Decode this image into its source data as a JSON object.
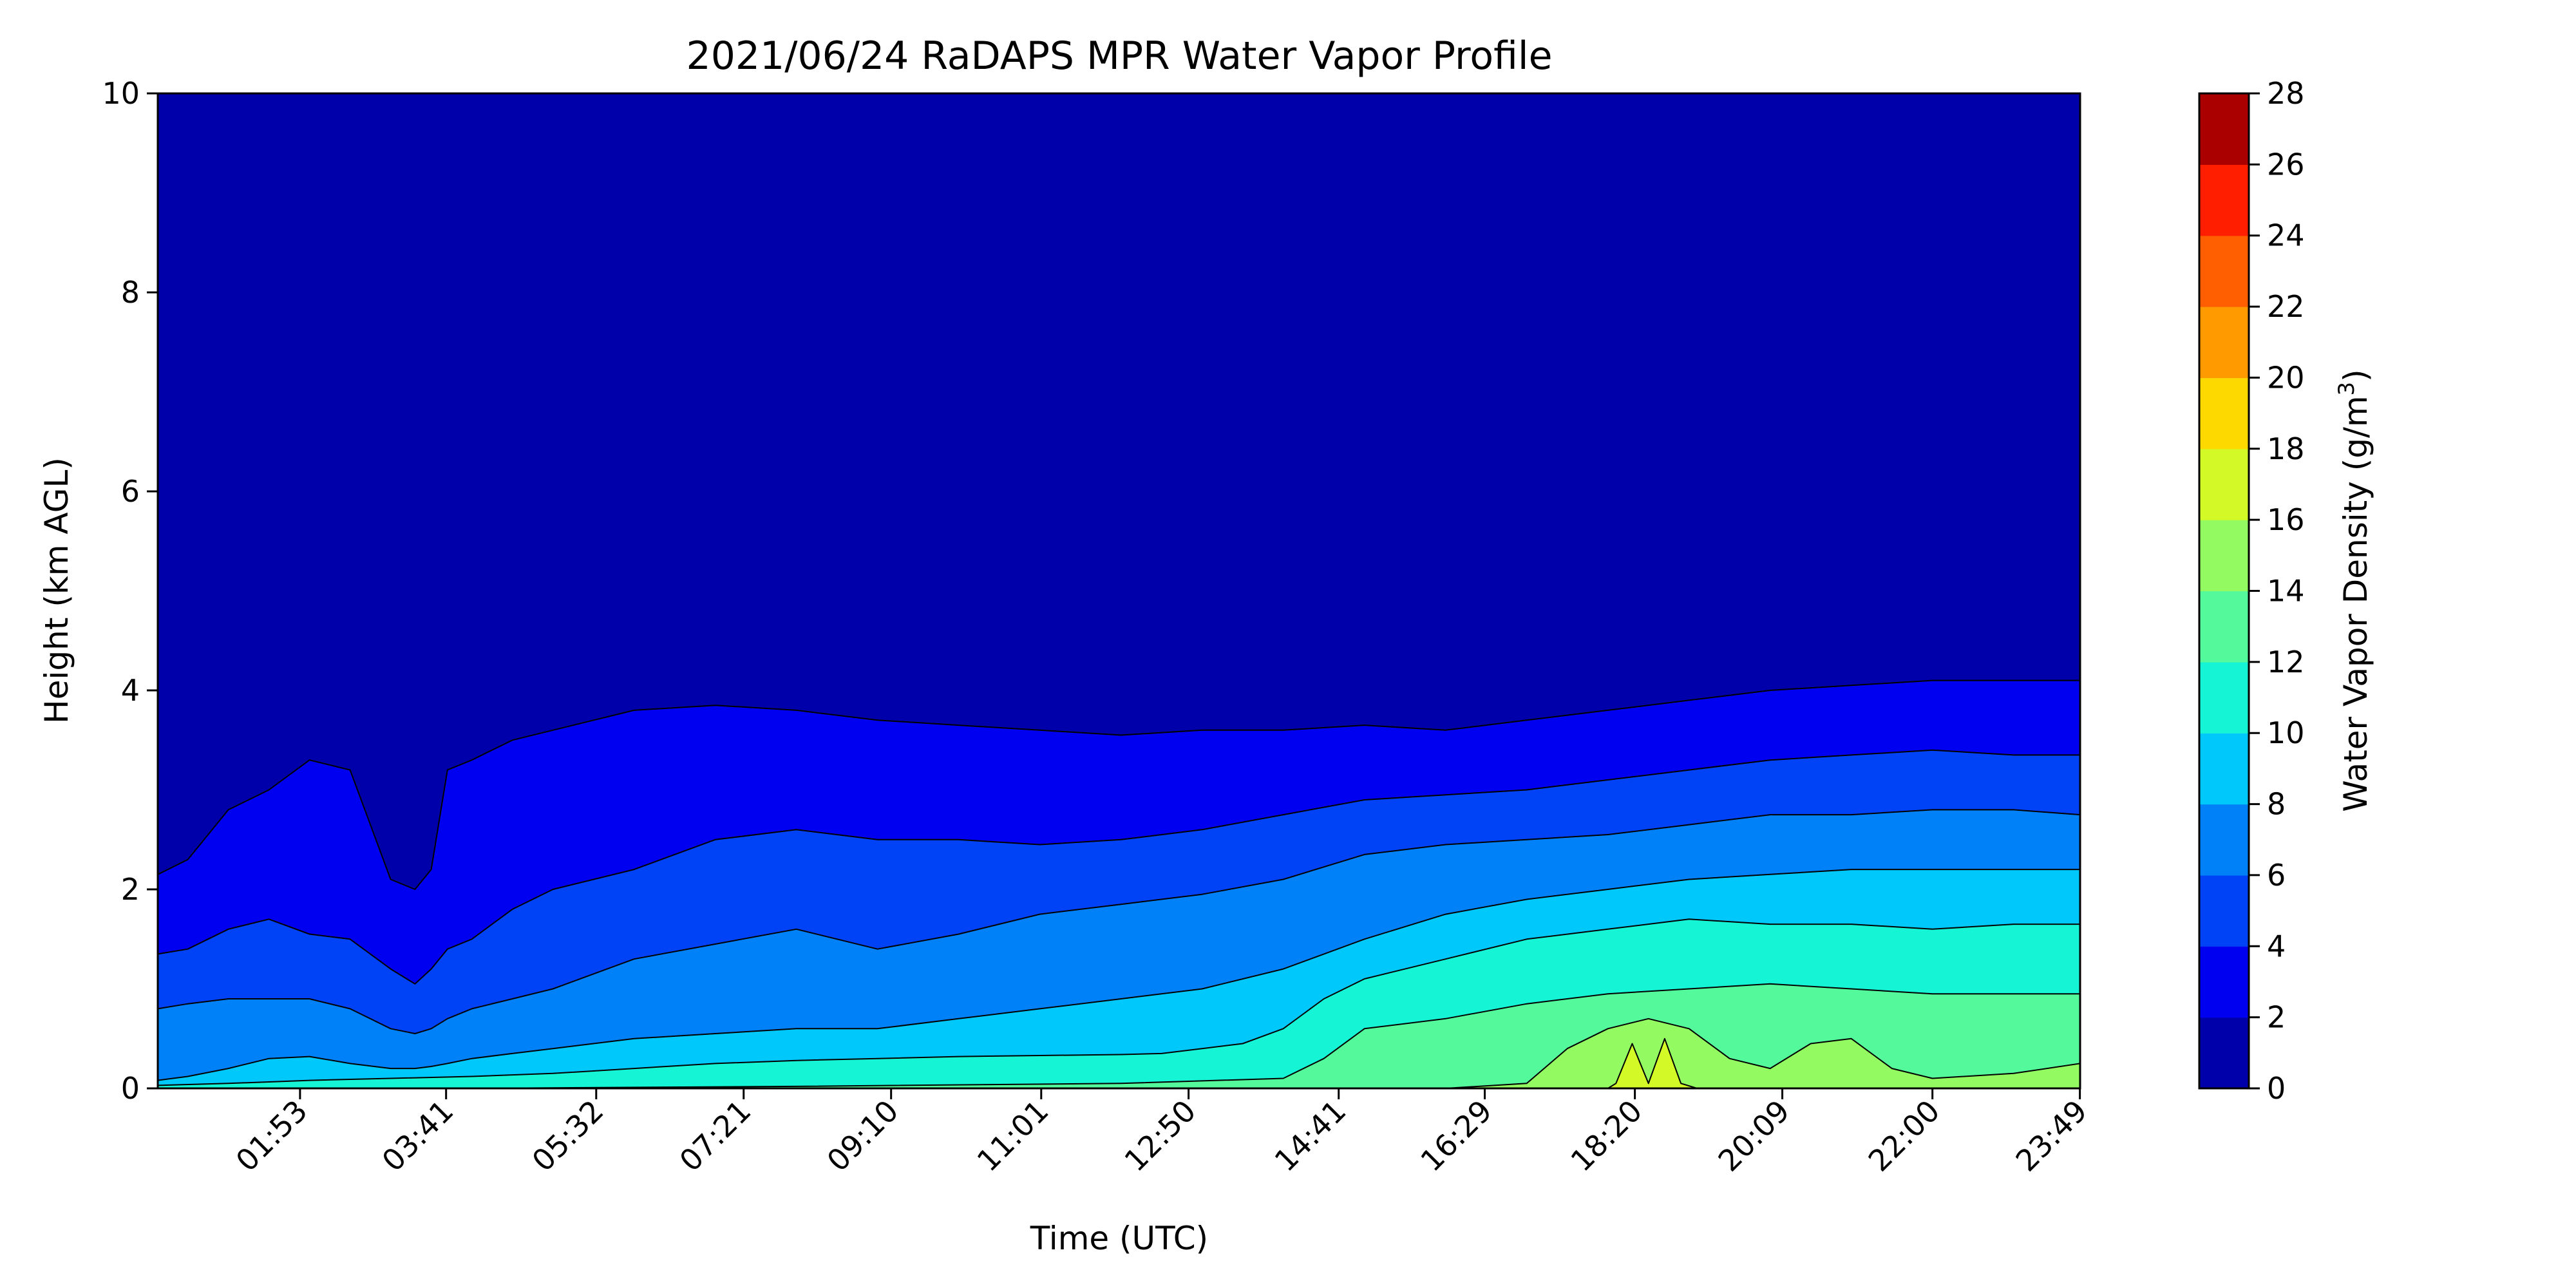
{
  "chart_data": {
    "type": "contour",
    "title": "2021/06/24 RaDAPS MPR Water Vapor Profile",
    "xlabel": "Time (UTC)",
    "ylabel": "Height (km AGL)",
    "colorbar_label": "Water Vapor Density (g/m",
    "colorbar_label_sup": "3",
    "colorbar_label_close": ")",
    "x_ticks": [
      "01:53",
      "03:41",
      "05:32",
      "07:21",
      "09:10",
      "11:01",
      "12:50",
      "14:41",
      "16:29",
      "18:20",
      "20:09",
      "22:00",
      "23:49"
    ],
    "x_tick_hours": [
      1.883,
      3.683,
      5.533,
      7.35,
      9.167,
      11.017,
      12.833,
      14.683,
      16.483,
      18.333,
      20.15,
      22.0,
      23.817
    ],
    "xlim_hours": [
      0.13,
      23.82
    ],
    "y_ticks": [
      "0",
      "2",
      "4",
      "6",
      "8",
      "10"
    ],
    "y_tick_values": [
      0,
      2,
      4,
      6,
      8,
      10
    ],
    "ylim": [
      0,
      10
    ],
    "levels": [
      0,
      2,
      4,
      6,
      8,
      10,
      12,
      14,
      16,
      18,
      20,
      22,
      24,
      26,
      28
    ],
    "level_labels": [
      "0",
      "2",
      "4",
      "6",
      "8",
      "10",
      "12",
      "14",
      "16",
      "18",
      "20",
      "22",
      "24",
      "26",
      "28"
    ],
    "colors": [
      "#0000aa",
      "#0000f0",
      "#0042f5",
      "#0081f8",
      "#00c8fa",
      "#16f4d6",
      "#54f99b",
      "#93fa61",
      "#d3fa26",
      "#fdd900",
      "#ff9b00",
      "#ff5f00",
      "#ff1f00",
      "#aa0000"
    ],
    "line_color": "#000000",
    "boundaries": [
      {
        "level": 2,
        "x": [
          0.13,
          0.5,
          1,
          1.5,
          2,
          2.5,
          3,
          3.3,
          3.5,
          3.7,
          4,
          4.5,
          5,
          6,
          7,
          8,
          9,
          10,
          11,
          12,
          13,
          14,
          15,
          16,
          17,
          18,
          19,
          20,
          21,
          22,
          23,
          23.82
        ],
        "y": [
          2.15,
          2.3,
          2.8,
          3.0,
          3.3,
          3.2,
          2.1,
          2.0,
          2.2,
          3.2,
          3.3,
          3.5,
          3.6,
          3.8,
          3.85,
          3.8,
          3.7,
          3.65,
          3.6,
          3.55,
          3.6,
          3.6,
          3.65,
          3.6,
          3.7,
          3.8,
          3.9,
          4.0,
          4.05,
          4.1,
          4.1,
          4.1
        ]
      },
      {
        "level": 4,
        "x": [
          0.13,
          0.5,
          1,
          1.5,
          2,
          2.5,
          3,
          3.3,
          3.5,
          3.7,
          4,
          4.5,
          5,
          6,
          7,
          8,
          9,
          10,
          11,
          12,
          13,
          14,
          15,
          16,
          17,
          18,
          19,
          20,
          21,
          22,
          23,
          23.82
        ],
        "y": [
          1.35,
          1.4,
          1.6,
          1.7,
          1.55,
          1.5,
          1.2,
          1.05,
          1.2,
          1.4,
          1.5,
          1.8,
          2.0,
          2.2,
          2.5,
          2.6,
          2.5,
          2.5,
          2.45,
          2.5,
          2.6,
          2.75,
          2.9,
          2.95,
          3.0,
          3.1,
          3.2,
          3.3,
          3.35,
          3.4,
          3.35,
          3.35
        ]
      },
      {
        "level": 6,
        "x": [
          0.13,
          0.5,
          1,
          1.5,
          2,
          2.5,
          3,
          3.3,
          3.5,
          3.7,
          4,
          4.5,
          5,
          6,
          7,
          8,
          9,
          10,
          11,
          12,
          13,
          14,
          15,
          16,
          17,
          18,
          19,
          20,
          21,
          22,
          23,
          23.82
        ],
        "y": [
          0.8,
          0.85,
          0.9,
          0.9,
          0.9,
          0.8,
          0.6,
          0.55,
          0.6,
          0.7,
          0.8,
          0.9,
          1.0,
          1.3,
          1.45,
          1.6,
          1.4,
          1.55,
          1.75,
          1.85,
          1.95,
          2.1,
          2.35,
          2.45,
          2.5,
          2.55,
          2.65,
          2.75,
          2.75,
          2.8,
          2.8,
          2.75
        ]
      },
      {
        "level": 8,
        "x": [
          0.13,
          0.5,
          1,
          1.5,
          2,
          2.5,
          3,
          3.3,
          3.5,
          3.7,
          4,
          4.5,
          5,
          6,
          7,
          8,
          9,
          10,
          11,
          12,
          13,
          14,
          15,
          16,
          17,
          18,
          19,
          20,
          21,
          22,
          23,
          23.82
        ],
        "y": [
          0.08,
          0.12,
          0.2,
          0.3,
          0.32,
          0.25,
          0.2,
          0.2,
          0.22,
          0.25,
          0.3,
          0.35,
          0.4,
          0.5,
          0.55,
          0.6,
          0.6,
          0.7,
          0.8,
          0.9,
          1.0,
          1.2,
          1.5,
          1.75,
          1.9,
          2.0,
          2.1,
          2.15,
          2.2,
          2.2,
          2.2,
          2.2
        ]
      },
      {
        "level": 10,
        "x": [
          0.13,
          1,
          2,
          3,
          4,
          5,
          6,
          7,
          8,
          9,
          10,
          11,
          12,
          12.5,
          13,
          13.5,
          14,
          14.5,
          15,
          16,
          17,
          18,
          19,
          20,
          21,
          22,
          23,
          23.82
        ],
        "y": [
          0.03,
          0.05,
          0.08,
          0.1,
          0.12,
          0.15,
          0.2,
          0.25,
          0.28,
          0.3,
          0.32,
          0.33,
          0.34,
          0.35,
          0.4,
          0.45,
          0.6,
          0.9,
          1.1,
          1.3,
          1.5,
          1.6,
          1.7,
          1.65,
          1.65,
          1.6,
          1.65,
          1.65
        ]
      },
      {
        "level": 12,
        "x": [
          0.13,
          4,
          8,
          12,
          14,
          14.5,
          15,
          16,
          17,
          18,
          19,
          20,
          21,
          22,
          23,
          23.82
        ],
        "y": [
          0,
          0,
          0.02,
          0.05,
          0.1,
          0.3,
          0.6,
          0.7,
          0.85,
          0.95,
          1.0,
          1.05,
          1.0,
          0.95,
          0.95,
          0.95
        ]
      },
      {
        "level": 14,
        "x": [
          0.13,
          16,
          17,
          17.5,
          18,
          18.5,
          19,
          19.5,
          20,
          20.5,
          21,
          21.5,
          22,
          23,
          23.82
        ],
        "y": [
          0,
          0,
          0.05,
          0.4,
          0.6,
          0.7,
          0.6,
          0.3,
          0.2,
          0.45,
          0.5,
          0.2,
          0.1,
          0.15,
          0.25
        ]
      },
      {
        "level": 16,
        "x": [
          0.13,
          18.0,
          18.1,
          18.3,
          18.5,
          18.7,
          18.9,
          19.1,
          23.82
        ],
        "y": [
          0,
          0,
          0.05,
          0.45,
          0.05,
          0.5,
          0.05,
          0,
          0
        ]
      }
    ]
  }
}
